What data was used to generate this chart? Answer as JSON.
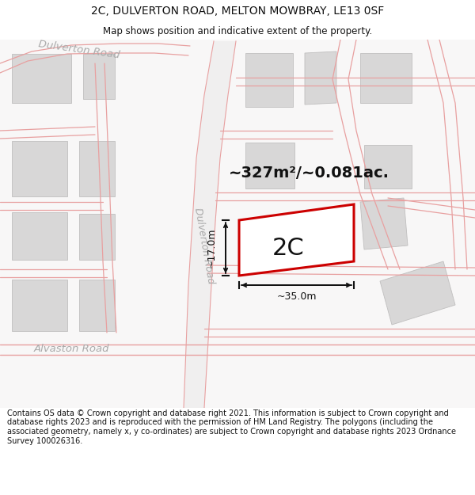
{
  "title_line1": "2C, DULVERTON ROAD, MELTON MOWBRAY, LE13 0SF",
  "title_line2": "Map shows position and indicative extent of the property.",
  "area_label": "~327m²/~0.081ac.",
  "plot_label": "2C",
  "dim_width": "~35.0m",
  "dim_height": "~17.0m",
  "road_label_dulverton": "Dulverton Road",
  "road_label_alvaston": "Alvaston Road",
  "footer_text": "Contains OS data © Crown copyright and database right 2021. This information is subject to Crown copyright and database rights 2023 and is reproduced with the permission of HM Land Registry. The polygons (including the associated geometry, namely x, y co-ordinates) are subject to Crown copyright and database rights 2023 Ordnance Survey 100026316.",
  "map_bg": "#f7f6f6",
  "road_surface": "#f0efef",
  "building_fill": "#d8d7d7",
  "building_edge": "#c0bfbf",
  "road_line_color": "#e8a0a0",
  "road_fill_color": "#ffffff",
  "highlight_color": "#cc0000",
  "text_gray": "#aaaaaa",
  "dim_color": "#111111",
  "white": "#ffffff",
  "title_fontsize": 10,
  "subtitle_fontsize": 8.5,
  "footer_fontsize": 7.0,
  "area_fontsize": 14,
  "plot_label_fontsize": 22,
  "dim_fontsize": 9,
  "road_label_fontsize": 9
}
